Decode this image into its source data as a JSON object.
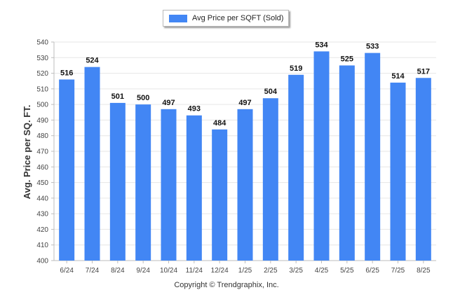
{
  "legend": {
    "label": "Avg Price per SQFT (Sold)"
  },
  "copyright": "Copyright © Trendgraphix, Inc.",
  "colors": {
    "bar": "#4286f4",
    "grid": "#e6e6e6",
    "axis": "#bdbdbd"
  },
  "chart_data": {
    "type": "bar",
    "ylabel": "Avg. Price per SQ. FT.",
    "xlabel": "",
    "ylim": [
      400,
      540
    ],
    "yticks": [
      400,
      410,
      420,
      430,
      440,
      450,
      460,
      470,
      480,
      490,
      500,
      510,
      520,
      530,
      540
    ],
    "grid": true,
    "legend_position": "top-center",
    "categories": [
      "6/24",
      "7/24",
      "8/24",
      "9/24",
      "10/24",
      "11/24",
      "12/24",
      "1/25",
      "2/25",
      "3/25",
      "4/25",
      "5/25",
      "6/25",
      "7/25",
      "8/25"
    ],
    "series": [
      {
        "name": "Avg Price per SQFT (Sold)",
        "values": [
          516,
          524,
          501,
          500,
          497,
          493,
          484,
          497,
          504,
          519,
          534,
          525,
          533,
          514,
          517
        ]
      }
    ]
  }
}
